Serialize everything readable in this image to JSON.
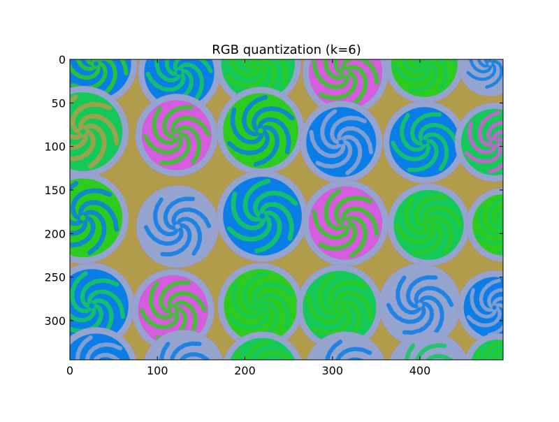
{
  "figure": {
    "background": "#ffffff"
  },
  "chart_data": {
    "type": "heatmap",
    "title": "RGB quantization (k=6)",
    "xlabel": "",
    "ylabel": "",
    "xlim": [
      0,
      495
    ],
    "ylim": [
      345,
      0
    ],
    "x_ticks": [
      0,
      100,
      200,
      300,
      400
    ],
    "y_ticks": [
      0,
      50,
      100,
      150,
      200,
      250,
      300
    ],
    "grid": false,
    "legend": "none",
    "palette": {
      "background_olive": "#b09c4a",
      "liner_lavender": "#95a3cf",
      "blue": "#0a7ee6",
      "green": "#2ecb1f",
      "teal_green": "#14c95a",
      "magenta": "#d55cdc"
    },
    "cupcakes": [
      {
        "cx": 30,
        "cy": 5,
        "r": 40,
        "fill": "#0a7ee6",
        "swirl": "#2ecb1f"
      },
      {
        "cx": 125,
        "cy": 15,
        "r": 40,
        "fill": "#0a7ee6",
        "swirl": "#14c95a"
      },
      {
        "cx": 215,
        "cy": 5,
        "r": 42,
        "fill": "#14c95a",
        "swirl": "#2ecb1f"
      },
      {
        "cx": 315,
        "cy": 15,
        "r": 42,
        "fill": "#d55cdc",
        "swirl": "#2ecb1f"
      },
      {
        "cx": 405,
        "cy": 5,
        "r": 38,
        "fill": "#2ecb1f",
        "swirl": "#14c95a"
      },
      {
        "cx": 480,
        "cy": 5,
        "r": 30,
        "fill": "#95a3cf",
        "swirl": "#0a7ee6"
      },
      {
        "cx": 15,
        "cy": 83,
        "r": 45,
        "fill": "#14c95a",
        "swirl": "#b09c4a"
      },
      {
        "cx": 122,
        "cy": 87,
        "r": 40,
        "fill": "#d55cdc",
        "swirl": "#2ecb1f"
      },
      {
        "cx": 218,
        "cy": 82,
        "r": 43,
        "fill": "#2ecb1f",
        "swirl": "#0a7ee6"
      },
      {
        "cx": 310,
        "cy": 95,
        "r": 40,
        "fill": "#0a7ee6",
        "swirl": "#95a3cf"
      },
      {
        "cx": 405,
        "cy": 95,
        "r": 40,
        "fill": "#0a7ee6",
        "swirl": "#14c95a"
      },
      {
        "cx": 485,
        "cy": 95,
        "r": 38,
        "fill": "#14c95a",
        "swirl": "#d55cdc"
      },
      {
        "cx": 15,
        "cy": 182,
        "r": 45,
        "fill": "#2ecb1f",
        "swirl": "#0a7ee6"
      },
      {
        "cx": 123,
        "cy": 192,
        "r": 40,
        "fill": "#95a3cf",
        "swirl": "#0a7ee6"
      },
      {
        "cx": 220,
        "cy": 180,
        "r": 45,
        "fill": "#0a7ee6",
        "swirl": "#14c95a"
      },
      {
        "cx": 315,
        "cy": 188,
        "r": 42,
        "fill": "#d55cdc",
        "swirl": "#2ecb1f"
      },
      {
        "cx": 410,
        "cy": 190,
        "r": 40,
        "fill": "#14c95a",
        "swirl": "#2ecb1f"
      },
      {
        "cx": 495,
        "cy": 190,
        "r": 35,
        "fill": "#2ecb1f",
        "swirl": "#14c95a"
      },
      {
        "cx": 25,
        "cy": 283,
        "r": 42,
        "fill": "#0a7ee6",
        "swirl": "#14c95a"
      },
      {
        "cx": 118,
        "cy": 288,
        "r": 40,
        "fill": "#d55cdc",
        "swirl": "#2ecb1f"
      },
      {
        "cx": 218,
        "cy": 283,
        "r": 42,
        "fill": "#2ecb1f",
        "swirl": "#14c95a"
      },
      {
        "cx": 308,
        "cy": 285,
        "r": 42,
        "fill": "#14c95a",
        "swirl": "#2ecb1f"
      },
      {
        "cx": 400,
        "cy": 282,
        "r": 40,
        "fill": "#95a3cf",
        "swirl": "#0a7ee6"
      },
      {
        "cx": 485,
        "cy": 285,
        "r": 35,
        "fill": "#0a7ee6",
        "swirl": "#95a3cf"
      },
      {
        "cx": 30,
        "cy": 355,
        "r": 40,
        "fill": "#0a7ee6",
        "swirl": "#95a3cf"
      },
      {
        "cx": 130,
        "cy": 358,
        "r": 40,
        "fill": "#95a3cf",
        "swirl": "#0a7ee6"
      },
      {
        "cx": 220,
        "cy": 360,
        "r": 40,
        "fill": "#14c95a",
        "swirl": "#2ecb1f"
      },
      {
        "cx": 315,
        "cy": 360,
        "r": 40,
        "fill": "#95a3cf",
        "swirl": "#0a7ee6"
      },
      {
        "cx": 410,
        "cy": 360,
        "r": 40,
        "fill": "#95a3cf",
        "swirl": "#14c95a"
      },
      {
        "cx": 488,
        "cy": 352,
        "r": 30,
        "fill": "#14c95a",
        "swirl": "#2ecb1f"
      }
    ]
  }
}
